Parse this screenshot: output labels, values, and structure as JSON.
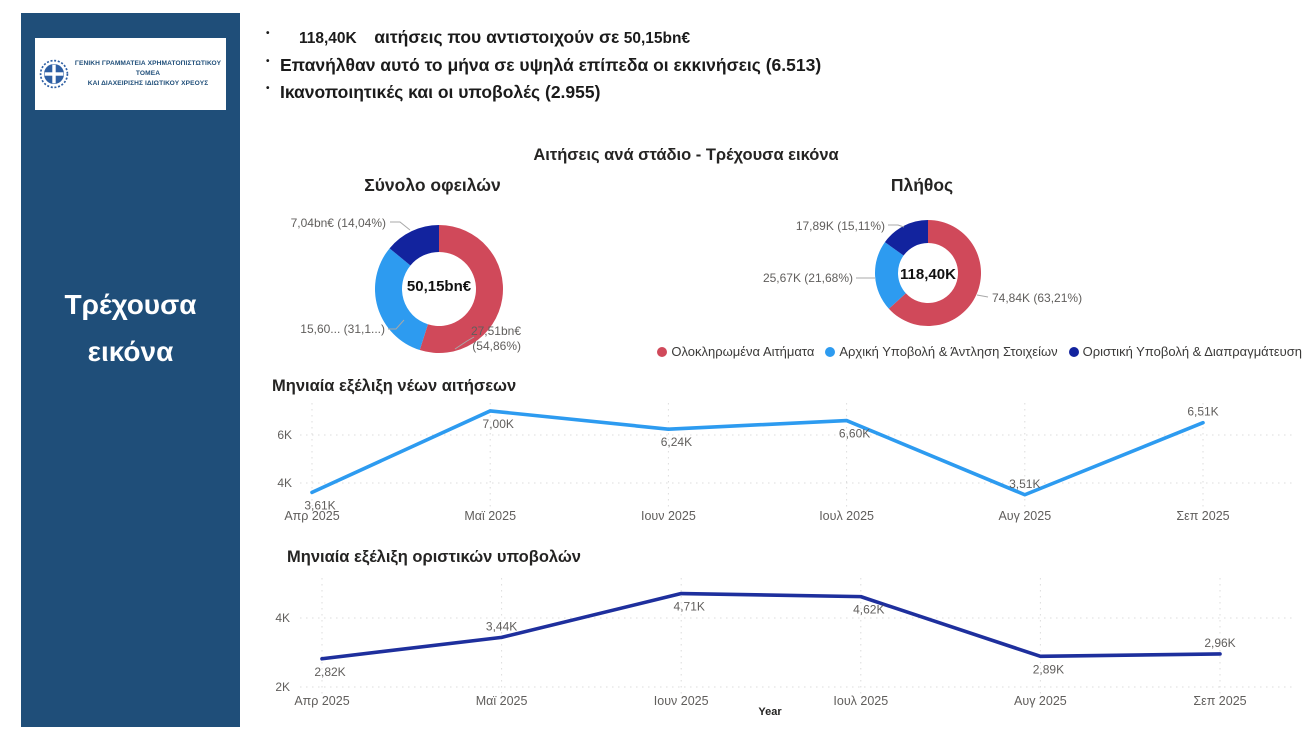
{
  "sidebar": {
    "logo_line1": "ΓΕΝΙΚΗ ΓΡΑΜΜΑΤΕΙΑ ΧΡΗΜΑΤΟΠΙΣΤΩΤΙΚΟΥ ΤΟΜΕΑ",
    "logo_line2": "ΚΑΙ ΔΙΑΧΕΙΡΙΣΗΣ ΙΔΙΩΤΙΚΟΥ ΧΡΕΟΥΣ",
    "title": "Τρέχουσα εικόνα"
  },
  "header": {
    "bullet_glyph": "•",
    "bullet1": {
      "value1": "118,40K",
      "text": "αιτήσεις που αντιστοιχούν σε",
      "value2": "50,15bn€"
    },
    "bullet2": "Επανήλθαν αυτό το μήνα σε υψηλά επίπεδα οι εκκινήσεις (6.513)",
    "bullet3": "Ικανοποιητικές και οι υποβολές (2.955)"
  },
  "section_title": "Αιτήσεις ανά στάδιο - Τρέχουσα εικόνα",
  "legend": {
    "items": [
      {
        "label": "Ολοκληρωμένα Αιτήματα",
        "color": "#D0495A"
      },
      {
        "label": "Αρχική Υποβολή & Άντληση Στοιχείων",
        "color": "#2D9BF0"
      },
      {
        "label": "Οριστική Υποβολή & Διαπραγμάτευση",
        "color": "#12239E"
      }
    ]
  },
  "colors": {
    "sidebar": "#1F4E79",
    "red": "#D0495A",
    "light_blue": "#2D9BF0",
    "navy": "#12239E"
  },
  "chart_data": [
    {
      "type": "pie",
      "title": "Σύνολο οφειλών",
      "center_label": "50,15bn€",
      "total": 50.15,
      "unit": "bn€",
      "slices": [
        {
          "name": "Ολοκληρωμένα Αιτήματα",
          "value": 27.51,
          "pct": 54.86,
          "label": "27,51bn€ (54,86%)",
          "color": "#D0495A"
        },
        {
          "name": "Αρχική Υποβολή & Άντληση Στοιχείων",
          "value": 15.6,
          "pct": 31.1,
          "label": "15,60... (31,1...)",
          "color": "#2D9BF0"
        },
        {
          "name": "Οριστική Υποβολή & Διαπραγμάτευση",
          "value": 7.04,
          "pct": 14.04,
          "label": "7,04bn€ (14,04%)",
          "color": "#12239E"
        }
      ]
    },
    {
      "type": "pie",
      "title": "Πλήθος",
      "center_label": "118,40K",
      "total": 118.4,
      "unit": "K",
      "slices": [
        {
          "name": "Ολοκληρωμένα Αιτήματα",
          "value": 74.84,
          "pct": 63.21,
          "label": "74,84K (63,21%)",
          "color": "#D0495A"
        },
        {
          "name": "Αρχική Υποβολή & Άντληση Στοιχείων",
          "value": 25.67,
          "pct": 21.68,
          "label": "25,67K (21,68%)",
          "color": "#2D9BF0"
        },
        {
          "name": "Οριστική Υποβολή & Διαπραγμάτευση",
          "value": 17.89,
          "pct": 15.11,
          "label": "17,89K (15,11%)",
          "color": "#12239E"
        }
      ]
    },
    {
      "type": "line",
      "title": "Μηνιαία εξέλιξη νέων αιτήσεων",
      "categories": [
        "Απρ 2025",
        "Μαϊ 2025",
        "Ιουν 2025",
        "Ιουλ 2025",
        "Αυγ 2025",
        "Σεπ 2025"
      ],
      "values": [
        3.61,
        7.0,
        6.24,
        6.6,
        3.51,
        6.51
      ],
      "labels": [
        "3,61K",
        "7,00K",
        "6,24K",
        "6,60K",
        "3,51K",
        "6,51K"
      ],
      "label_side": [
        "below",
        "below",
        "below",
        "below",
        "above",
        "above"
      ],
      "y_ticks": [
        {
          "value": 4,
          "label": "4K"
        },
        {
          "value": 6,
          "label": "6K"
        }
      ],
      "ylim": [
        3.0,
        7.33
      ],
      "unit": "K",
      "color": "#2D9BF0",
      "grid": true,
      "xlabel": ""
    },
    {
      "type": "line",
      "title": "Μηνιαία εξέλιξη οριστικών υποβολών",
      "categories": [
        "Απρ 2025",
        "Μαϊ 2025",
        "Ιουν 2025",
        "Ιουλ 2025",
        "Αυγ 2025",
        "Σεπ 2025"
      ],
      "values": [
        2.82,
        3.44,
        4.71,
        4.62,
        2.89,
        2.96
      ],
      "labels": [
        "2,82K",
        "3,44K",
        "4,71K",
        "4,62K",
        "2,89K",
        "2,96K"
      ],
      "label_side": [
        "below",
        "above",
        "below",
        "below",
        "below",
        "above"
      ],
      "y_ticks": [
        {
          "value": 2,
          "label": "2K"
        },
        {
          "value": 4,
          "label": "4K"
        }
      ],
      "ylim": [
        1.77,
        5.16
      ],
      "unit": "K",
      "color": "#1E2F9D",
      "grid": true,
      "xlabel": "Year"
    }
  ]
}
